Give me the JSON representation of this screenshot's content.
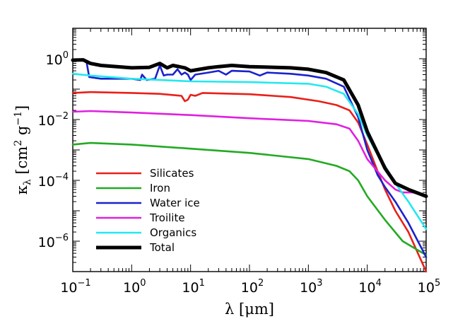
{
  "chart_data": {
    "type": "line",
    "xlabel": "λ [μm]",
    "ylabel_parts": {
      "kappa": "κ",
      "sub": "λ",
      "open": " [cm",
      "sup1": "2",
      "mid": " g",
      "sup2": "−1",
      "close": "]"
    },
    "xscale": "log",
    "yscale": "log",
    "xlim": [
      0.1,
      100000
    ],
    "ylim": [
      1e-07,
      10
    ],
    "grid": false,
    "legend_position": "bottom-left",
    "x_ticks": [
      {
        "value": 0.1,
        "base": "10",
        "exp": "−1"
      },
      {
        "value": 1,
        "base": "10",
        "exp": "0"
      },
      {
        "value": 10,
        "base": "10",
        "exp": "1"
      },
      {
        "value": 100,
        "base": "10",
        "exp": "2"
      },
      {
        "value": 1000,
        "base": "10",
        "exp": "3"
      },
      {
        "value": 10000,
        "base": "10",
        "exp": "4"
      },
      {
        "value": 100000,
        "base": "10",
        "exp": "5"
      }
    ],
    "y_ticks": [
      {
        "value": 1e-06,
        "base": "10",
        "exp": "−6"
      },
      {
        "value": 0.0001,
        "base": "10",
        "exp": "−4"
      },
      {
        "value": 0.01,
        "base": "10",
        "exp": "−2"
      },
      {
        "value": 1,
        "base": "10",
        "exp": "0"
      }
    ],
    "series": [
      {
        "name": "Silicates",
        "color": "#e8201a",
        "points": [
          [
            0.1,
            0.075
          ],
          [
            0.2,
            0.08
          ],
          [
            1,
            0.075
          ],
          [
            3,
            0.07
          ],
          [
            7,
            0.06
          ],
          [
            8,
            0.04
          ],
          [
            9,
            0.045
          ],
          [
            10,
            0.065
          ],
          [
            12,
            0.06
          ],
          [
            16,
            0.075
          ],
          [
            30,
            0.072
          ],
          [
            100,
            0.068
          ],
          [
            500,
            0.055
          ],
          [
            1500,
            0.04
          ],
          [
            3000,
            0.03
          ],
          [
            5000,
            0.02
          ],
          [
            7000,
            0.008
          ],
          [
            10000,
            0.0015
          ],
          [
            15000,
            0.0002
          ],
          [
            20000,
            5e-05
          ],
          [
            30000,
            1e-05
          ],
          [
            50000,
            2e-06
          ],
          [
            100000,
            1e-07
          ]
        ]
      },
      {
        "name": "Iron",
        "color": "#22aa22",
        "points": [
          [
            0.1,
            0.0015
          ],
          [
            0.2,
            0.0017
          ],
          [
            1,
            0.0015
          ],
          [
            10,
            0.0011
          ],
          [
            100,
            0.0008
          ],
          [
            1000,
            0.0005
          ],
          [
            3000,
            0.0003
          ],
          [
            5000,
            0.0002
          ],
          [
            7000,
            0.0001
          ],
          [
            10000,
            3e-05
          ],
          [
            20000,
            5e-06
          ],
          [
            40000,
            1e-06
          ],
          [
            100000,
            3.5e-07
          ]
        ]
      },
      {
        "name": "Water ice",
        "color": "#1a22cc",
        "points": [
          [
            0.1,
            0.9
          ],
          [
            0.17,
            0.85
          ],
          [
            0.19,
            0.25
          ],
          [
            0.3,
            0.22
          ],
          [
            1,
            0.22
          ],
          [
            1.4,
            0.2
          ],
          [
            1.5,
            0.3
          ],
          [
            1.8,
            0.2
          ],
          [
            2.5,
            0.22
          ],
          [
            3,
            0.6
          ],
          [
            3.5,
            0.28
          ],
          [
            4,
            0.3
          ],
          [
            5,
            0.3
          ],
          [
            6,
            0.45
          ],
          [
            7,
            0.3
          ],
          [
            8,
            0.35
          ],
          [
            9,
            0.3
          ],
          [
            10,
            0.2
          ],
          [
            12,
            0.3
          ],
          [
            20,
            0.35
          ],
          [
            30,
            0.4
          ],
          [
            40,
            0.3
          ],
          [
            50,
            0.4
          ],
          [
            100,
            0.38
          ],
          [
            150,
            0.28
          ],
          [
            200,
            0.35
          ],
          [
            500,
            0.32
          ],
          [
            1000,
            0.28
          ],
          [
            2000,
            0.22
          ],
          [
            4000,
            0.12
          ],
          [
            7000,
            0.012
          ],
          [
            10000,
            0.001
          ],
          [
            15000,
            0.00015
          ],
          [
            20000,
            6e-05
          ],
          [
            30000,
            2e-05
          ],
          [
            50000,
            4e-06
          ],
          [
            100000,
            3e-07
          ]
        ]
      },
      {
        "name": "Troilite",
        "color": "#e020e0",
        "points": [
          [
            0.1,
            0.018
          ],
          [
            0.2,
            0.019
          ],
          [
            1,
            0.017
          ],
          [
            10,
            0.014
          ],
          [
            100,
            0.011
          ],
          [
            1000,
            0.009
          ],
          [
            3000,
            0.007
          ],
          [
            5000,
            0.005
          ],
          [
            7000,
            0.002
          ],
          [
            10000,
            0.0005
          ],
          [
            20000,
            0.0001
          ],
          [
            30000,
            5e-05
          ],
          [
            40000,
            4e-05
          ],
          [
            60000,
            4e-05
          ],
          [
            100000,
            3e-05
          ]
        ]
      },
      {
        "name": "Organics",
        "color": "#22e8f0",
        "points": [
          [
            0.1,
            0.32
          ],
          [
            0.2,
            0.28
          ],
          [
            1,
            0.22
          ],
          [
            10,
            0.18
          ],
          [
            100,
            0.17
          ],
          [
            1000,
            0.15
          ],
          [
            2000,
            0.12
          ],
          [
            4000,
            0.07
          ],
          [
            7000,
            0.015
          ],
          [
            10000,
            0.003
          ],
          [
            15000,
            0.0007
          ],
          [
            20000,
            0.0003
          ],
          [
            30000,
            8e-05
          ],
          [
            50000,
            2e-05
          ],
          [
            100000,
            2.5e-06
          ]
        ]
      },
      {
        "name": "Total",
        "color": "#000000",
        "points": [
          [
            0.1,
            0.9
          ],
          [
            0.15,
            0.92
          ],
          [
            0.2,
            0.7
          ],
          [
            0.3,
            0.6
          ],
          [
            1,
            0.5
          ],
          [
            2,
            0.52
          ],
          [
            3,
            0.7
          ],
          [
            4,
            0.5
          ],
          [
            5,
            0.6
          ],
          [
            8,
            0.5
          ],
          [
            10,
            0.4
          ],
          [
            20,
            0.5
          ],
          [
            30,
            0.55
          ],
          [
            50,
            0.6
          ],
          [
            100,
            0.55
          ],
          [
            500,
            0.5
          ],
          [
            1000,
            0.45
          ],
          [
            2000,
            0.35
          ],
          [
            4000,
            0.2
          ],
          [
            7000,
            0.03
          ],
          [
            10000,
            0.004
          ],
          [
            15000,
            0.0008
          ],
          [
            20000,
            0.00025
          ],
          [
            30000,
            8e-05
          ],
          [
            50000,
            5e-05
          ],
          [
            100000,
            3e-05
          ]
        ]
      }
    ]
  }
}
